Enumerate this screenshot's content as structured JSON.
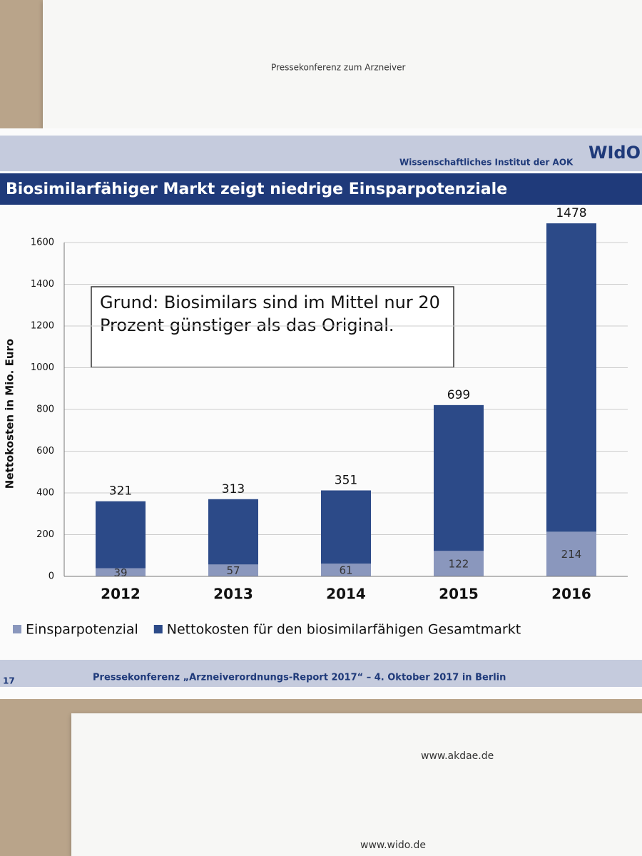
{
  "slide": {
    "institute": "Wissenschaftliches Institut der AOK",
    "logo": "WIdO",
    "footer": "Pressekonferenz „Arzneiverordnungs-Report 2017“ – 4. Oktober 2017 in Berlin",
    "page": "17",
    "back_note": "Pressekonferenz zum Arzneiver",
    "web1": "www.akdae.de",
    "web2": "www.wido.de"
  },
  "chart_data": {
    "type": "bar",
    "stacked": true,
    "title": "Biosimilarfähiger Markt zeigt niedrige Einsparpotenziale",
    "annotation": "Grund: Biosimilars sind im Mittel nur 20 Prozent günstiger als das Original.",
    "ylabel": "Nettokosten in Mio. Euro",
    "categories": [
      "2012",
      "2013",
      "2014",
      "2015",
      "2016"
    ],
    "series": [
      {
        "name": "Einsparpotenzial",
        "color": "#8a97bd",
        "values": [
          39,
          57,
          61,
          122,
          214
        ]
      },
      {
        "name": "Nettokosten für den biosimilarfähigen Gesamtmarkt",
        "color": "#2c4a88",
        "values": [
          321,
          313,
          351,
          699,
          1478
        ]
      }
    ],
    "ylim": [
      0,
      1600
    ],
    "yticks": [
      0,
      200,
      400,
      600,
      800,
      1000,
      1200,
      1400,
      1600
    ],
    "grid": true
  }
}
